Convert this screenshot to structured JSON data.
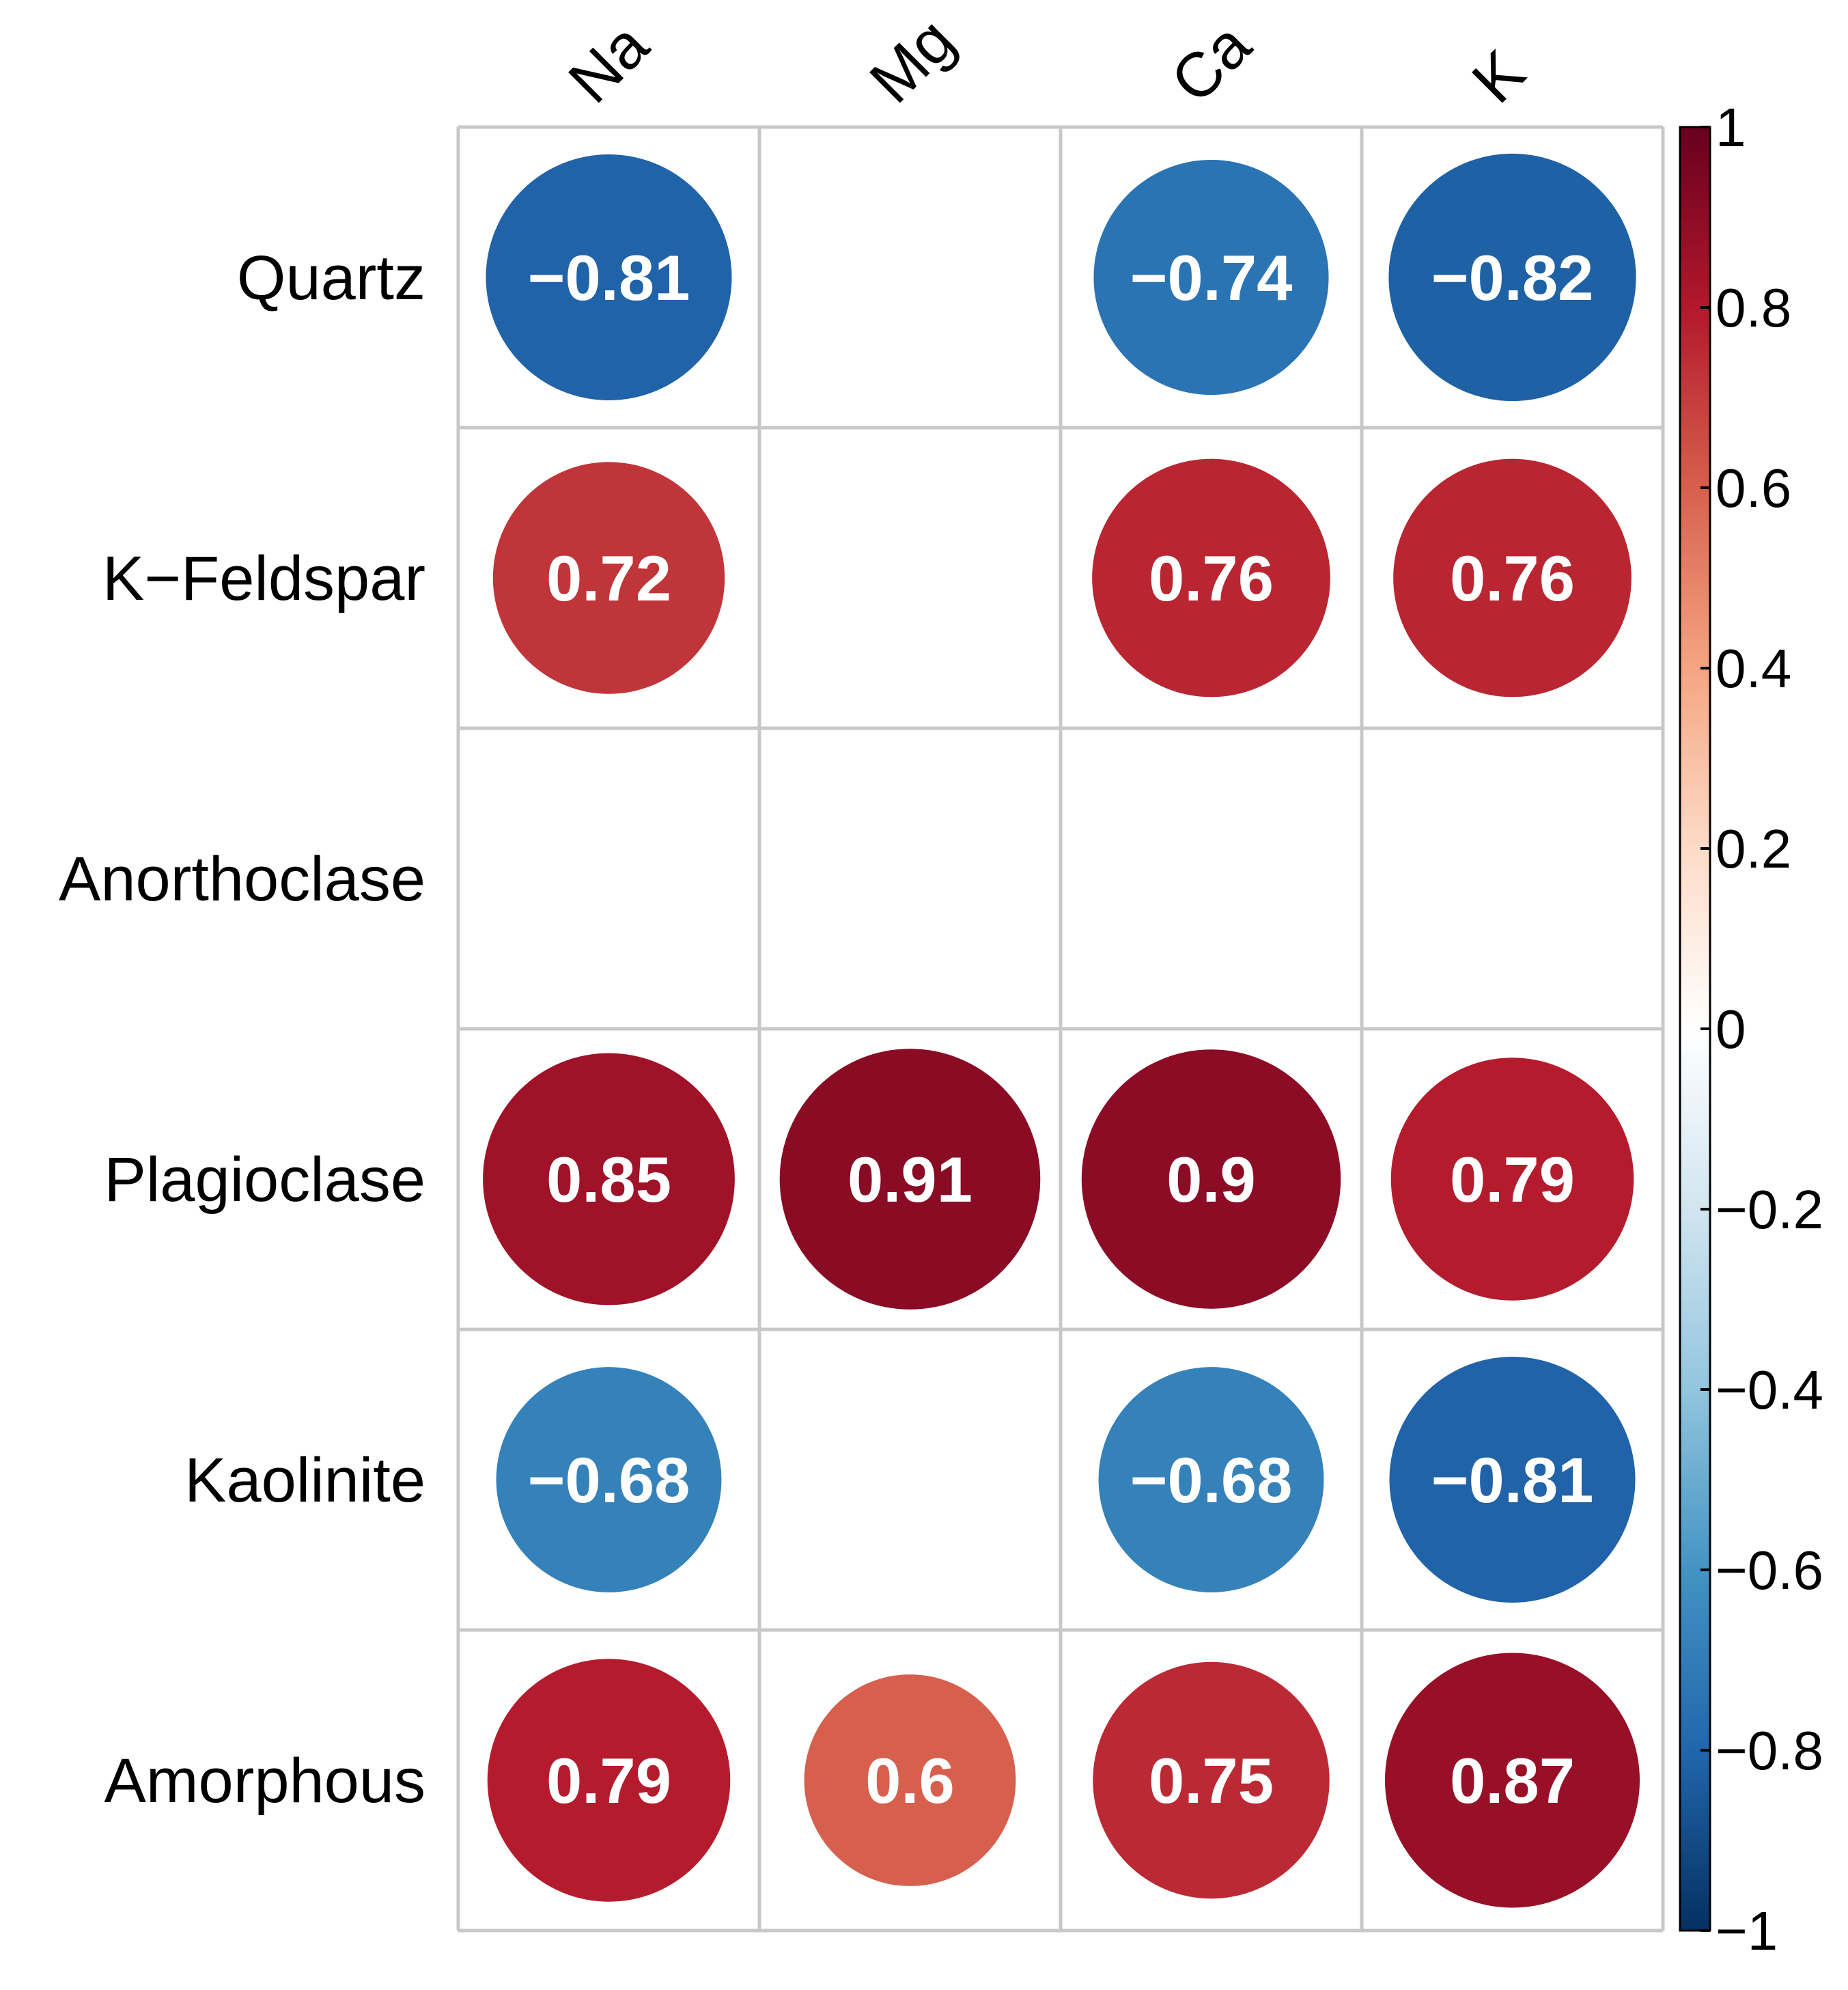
{
  "chart_data": {
    "type": "heatmap",
    "subtype": "correlation-circles",
    "columns": [
      "Na",
      "Mg",
      "Ca",
      "K"
    ],
    "rows": [
      "Quartz",
      "K−Feldspar",
      "Anorthoclase",
      "Plagioclase",
      "Kaolinite",
      "Amorphous"
    ],
    "values": [
      [
        -0.81,
        null,
        -0.74,
        -0.82
      ],
      [
        0.72,
        null,
        0.76,
        0.76
      ],
      [
        null,
        null,
        null,
        null
      ],
      [
        0.85,
        0.91,
        0.9,
        0.79
      ],
      [
        -0.68,
        null,
        -0.68,
        -0.81
      ],
      [
        0.79,
        0.6,
        0.75,
        0.87
      ]
    ],
    "value_labels": [
      [
        "−0.81",
        null,
        "−0.74",
        "−0.82"
      ],
      [
        "0.72",
        null,
        "0.76",
        "0.76"
      ],
      [
        null,
        null,
        null,
        null
      ],
      [
        "0.85",
        "0.91",
        "0.9",
        "0.79"
      ],
      [
        "−0.68",
        null,
        "−0.68",
        "−0.81"
      ],
      [
        "0.79",
        "0.6",
        "0.75",
        "0.87"
      ]
    ],
    "colorbar": {
      "range": [
        -1,
        1
      ],
      "ticks": [
        1,
        0.8,
        0.6,
        0.4,
        0.2,
        0,
        -0.2,
        -0.4,
        -0.6,
        -0.8,
        -1
      ],
      "tick_labels": [
        "1",
        "0.8",
        "0.6",
        "0.4",
        "0.2",
        "0",
        "−0.2",
        "−0.4",
        "−0.6",
        "−0.8",
        "−1"
      ],
      "colors": [
        "#67001F",
        "#B2182B",
        "#D6604D",
        "#F4A582",
        "#FDDBC7",
        "#FFFFFF",
        "#D1E5F0",
        "#92C5DE",
        "#4393C3",
        "#2166AC",
        "#053061"
      ]
    },
    "legend_position": "right"
  }
}
